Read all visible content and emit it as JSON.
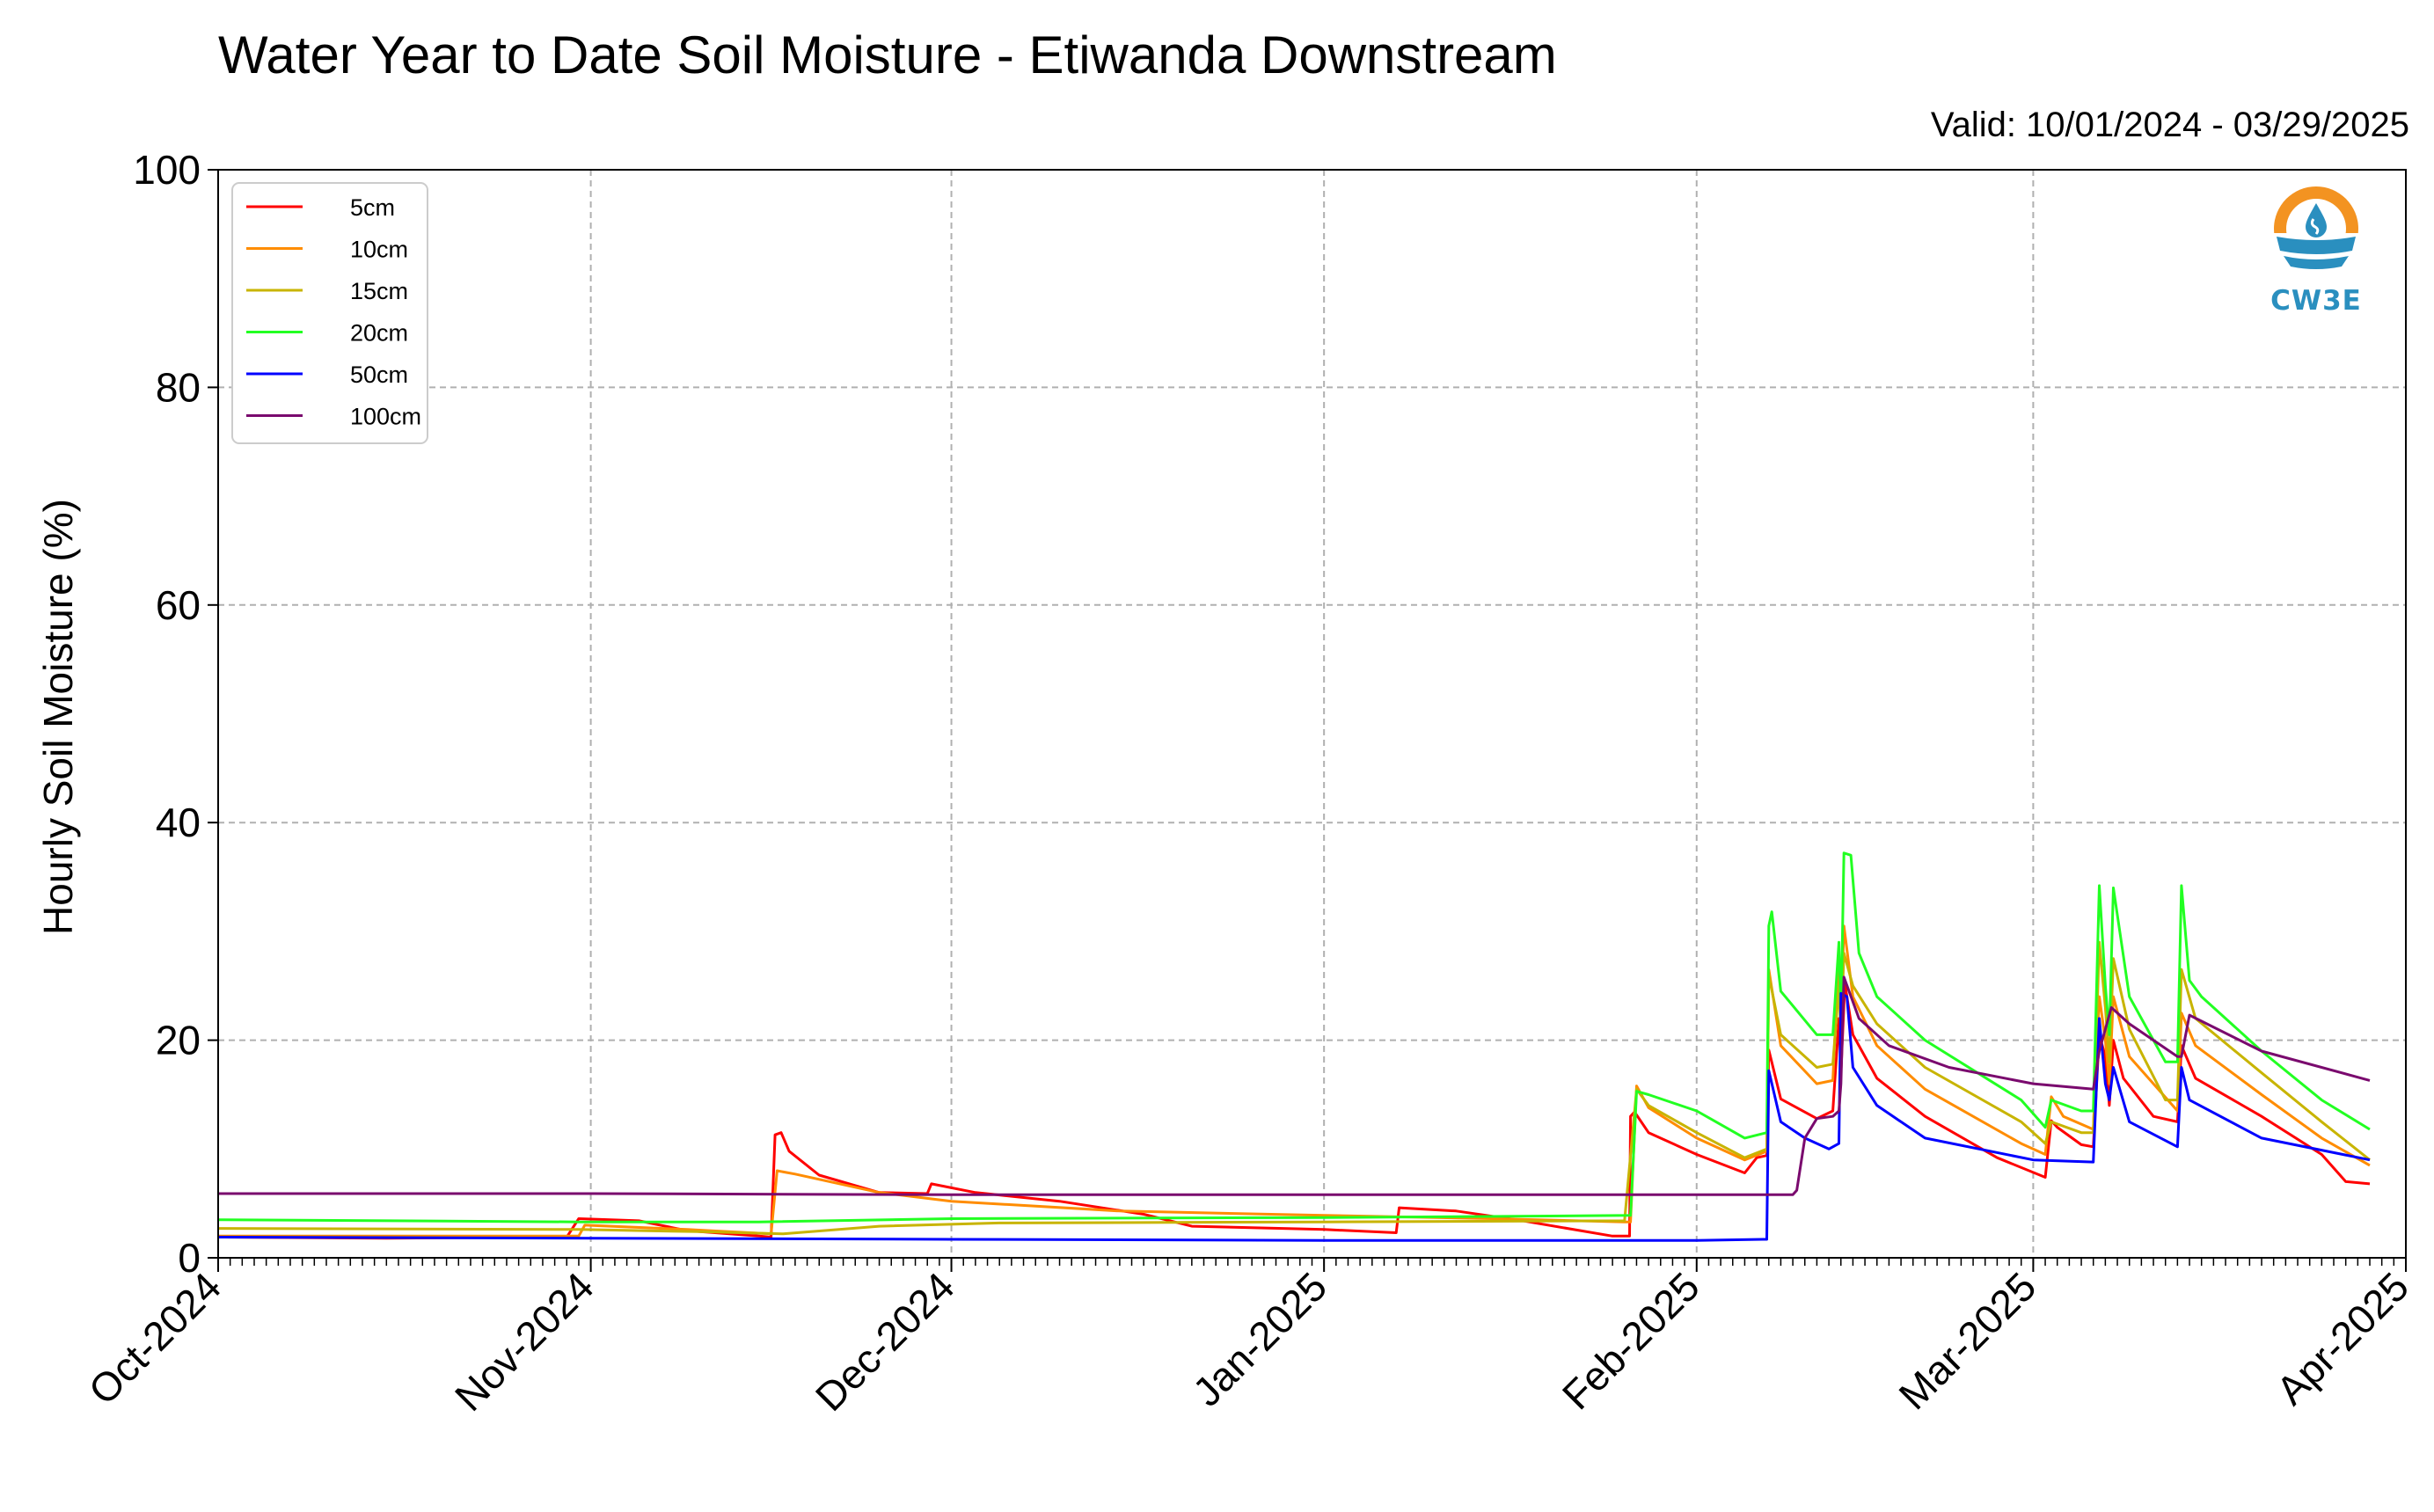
{
  "title": "Water Year to Date Soil Moisture - Etiwanda Downstream",
  "valid_range": "Valid: 10/01/2024 - 03/29/2025",
  "logo": {
    "text": "CW3E",
    "icon": "water-drop-logo-icon",
    "colors": [
      "#f39321",
      "#2a8fbf"
    ]
  },
  "chart_data": {
    "type": "line",
    "title": "Water Year to Date Soil Moisture - Etiwanda Downstream",
    "ylabel": "Hourly Soil Moisture (%)",
    "xlabel": "",
    "ylim": [
      0,
      100
    ],
    "xlim": [
      "2024-10-01",
      "2025-04-01"
    ],
    "yticks": [
      "0",
      "20",
      "40",
      "60",
      "80",
      "100"
    ],
    "xticks": [
      {
        "date": "2024-10-01",
        "label": "Oct-2024"
      },
      {
        "date": "2024-11-01",
        "label": "Nov-2024"
      },
      {
        "date": "2024-12-01",
        "label": "Dec-2024"
      },
      {
        "date": "2025-01-01",
        "label": "Jan-2025"
      },
      {
        "date": "2025-02-01",
        "label": "Feb-2025"
      },
      {
        "date": "2025-03-01",
        "label": "Mar-2025"
      },
      {
        "date": "2025-04-01",
        "label": "Apr-2025"
      }
    ],
    "grid": true,
    "legend_position": "top-left",
    "series": [
      {
        "name": "5cm",
        "color": "#ff0000",
        "points": [
          [
            "2024-10-01T00",
            1.9
          ],
          [
            "2024-10-15T00",
            1.8
          ],
          [
            "2024-10-30T00",
            1.9
          ],
          [
            "2024-10-31T00",
            3.6
          ],
          [
            "2024-11-05T00",
            3.4
          ],
          [
            "2024-11-09T00",
            2.5
          ],
          [
            "2024-11-15T00",
            2.0
          ],
          [
            "2024-11-16T00",
            1.9
          ],
          [
            "2024-11-16T08",
            11.3
          ],
          [
            "2024-11-16T20",
            11.5
          ],
          [
            "2024-11-17T12",
            9.8
          ],
          [
            "2024-11-20T00",
            7.6
          ],
          [
            "2024-11-25T00",
            6.0
          ],
          [
            "2024-11-29T00",
            5.9
          ],
          [
            "2024-11-29T08",
            6.8
          ],
          [
            "2024-12-03T00",
            6.0
          ],
          [
            "2024-12-10T00",
            5.2
          ],
          [
            "2024-12-17T00",
            4.0
          ],
          [
            "2024-12-21T00",
            2.9
          ],
          [
            "2025-01-01T00",
            2.6
          ],
          [
            "2025-01-07T00",
            2.3
          ],
          [
            "2025-01-07T06",
            4.6
          ],
          [
            "2025-01-12T00",
            4.3
          ],
          [
            "2025-01-17T00",
            3.5
          ],
          [
            "2025-01-25T00",
            2.0
          ],
          [
            "2025-01-26T10",
            2.0
          ],
          [
            "2025-01-26T12",
            13.0
          ],
          [
            "2025-01-26T20",
            13.4
          ],
          [
            "2025-01-28T00",
            11.5
          ],
          [
            "2025-02-01T00",
            9.5
          ],
          [
            "2025-02-05T00",
            7.8
          ],
          [
            "2025-02-06T00",
            9.2
          ],
          [
            "2025-02-06T20",
            9.4
          ],
          [
            "2025-02-07T00",
            19.1
          ],
          [
            "2025-02-08T00",
            14.6
          ],
          [
            "2025-02-11T00",
            12.8
          ],
          [
            "2025-02-12T08",
            13.5
          ],
          [
            "2025-02-12T20",
            22.0
          ],
          [
            "2025-02-13T00",
            17.0
          ],
          [
            "2025-02-13T08",
            25.2
          ],
          [
            "2025-02-14T00",
            20.5
          ],
          [
            "2025-02-16T00",
            16.5
          ],
          [
            "2025-02-20T00",
            13.0
          ],
          [
            "2025-02-26T00",
            9.2
          ],
          [
            "2025-03-02T00",
            7.4
          ],
          [
            "2025-03-02T12",
            12.6
          ],
          [
            "2025-03-03T00",
            12.0
          ],
          [
            "2025-03-05T00",
            10.4
          ],
          [
            "2025-03-06T00",
            10.2
          ],
          [
            "2025-03-06T12",
            20.5
          ],
          [
            "2025-03-07T00",
            18.5
          ],
          [
            "2025-03-07T08",
            14.0
          ],
          [
            "2025-03-07T16",
            20.0
          ],
          [
            "2025-03-08T12",
            16.5
          ],
          [
            "2025-03-11T00",
            13.0
          ],
          [
            "2025-03-13T00",
            12.5
          ],
          [
            "2025-03-13T08",
            19.5
          ],
          [
            "2025-03-14T12",
            16.5
          ],
          [
            "2025-03-20T00",
            13.0
          ],
          [
            "2025-03-25T00",
            9.5
          ],
          [
            "2025-03-27T00",
            7.0
          ],
          [
            "2025-03-29T00",
            6.8
          ]
        ]
      },
      {
        "name": "10cm",
        "color": "#ff8c00",
        "points": [
          [
            "2024-10-01T00",
            2.0
          ],
          [
            "2024-10-31T00",
            2.0
          ],
          [
            "2024-10-31T12",
            3.0
          ],
          [
            "2024-11-09T00",
            2.6
          ],
          [
            "2024-11-16T00",
            2.2
          ],
          [
            "2024-11-16T12",
            8.0
          ],
          [
            "2024-11-18T00",
            7.7
          ],
          [
            "2024-11-25T00",
            6.0
          ],
          [
            "2024-12-01T00",
            5.2
          ],
          [
            "2024-12-15T00",
            4.3
          ],
          [
            "2025-01-01T00",
            3.9
          ],
          [
            "2025-01-15T00",
            3.6
          ],
          [
            "2025-01-26T00",
            3.3
          ],
          [
            "2025-01-26T12",
            3.3
          ],
          [
            "2025-01-27T00",
            15.8
          ],
          [
            "2025-01-28T00",
            13.8
          ],
          [
            "2025-02-01T00",
            11.0
          ],
          [
            "2025-02-05T00",
            9.0
          ],
          [
            "2025-02-06T20",
            9.8
          ],
          [
            "2025-02-07T00",
            26.5
          ],
          [
            "2025-02-08T00",
            19.5
          ],
          [
            "2025-02-11T00",
            16.0
          ],
          [
            "2025-02-12T08",
            16.3
          ],
          [
            "2025-02-12T20",
            28.0
          ],
          [
            "2025-02-13T00",
            21.0
          ],
          [
            "2025-02-13T06",
            30.5
          ],
          [
            "2025-02-14T00",
            24.0
          ],
          [
            "2025-02-16T00",
            19.5
          ],
          [
            "2025-02-20T00",
            15.5
          ],
          [
            "2025-02-28T00",
            10.5
          ],
          [
            "2025-03-02T00",
            9.5
          ],
          [
            "2025-03-02T12",
            14.8
          ],
          [
            "2025-03-03T12",
            13.0
          ],
          [
            "2025-03-06T00",
            11.8
          ],
          [
            "2025-03-06T12",
            24.0
          ],
          [
            "2025-03-07T00",
            20.0
          ],
          [
            "2025-03-07T08",
            16.0
          ],
          [
            "2025-03-07T16",
            24.0
          ],
          [
            "2025-03-09T00",
            18.5
          ],
          [
            "2025-03-13T00",
            13.5
          ],
          [
            "2025-03-13T08",
            22.5
          ],
          [
            "2025-03-14T12",
            19.5
          ],
          [
            "2025-03-20T00",
            15.0
          ],
          [
            "2025-03-25T00",
            11.0
          ],
          [
            "2025-03-29T00",
            8.5
          ]
        ]
      },
      {
        "name": "15cm",
        "color": "#c8b400",
        "points": [
          [
            "2024-10-01T00",
            2.7
          ],
          [
            "2024-10-31T00",
            2.6
          ],
          [
            "2024-11-10T00",
            2.4
          ],
          [
            "2024-11-17T00",
            2.2
          ],
          [
            "2024-11-25T00",
            2.9
          ],
          [
            "2024-12-05T00",
            3.2
          ],
          [
            "2025-01-01T00",
            3.3
          ],
          [
            "2025-01-26T00",
            3.4
          ],
          [
            "2025-01-27T00",
            15.5
          ],
          [
            "2025-01-28T00",
            14.0
          ],
          [
            "2025-02-01T00",
            11.5
          ],
          [
            "2025-02-05T00",
            9.2
          ],
          [
            "2025-02-06T20",
            10.0
          ],
          [
            "2025-02-07T00",
            26.0
          ],
          [
            "2025-02-08T00",
            20.5
          ],
          [
            "2025-02-11T00",
            17.5
          ],
          [
            "2025-02-12T08",
            17.8
          ],
          [
            "2025-02-12T20",
            25.0
          ],
          [
            "2025-02-13T00",
            20.5
          ],
          [
            "2025-02-13T06",
            28.0
          ],
          [
            "2025-02-14T00",
            25.0
          ],
          [
            "2025-02-16T00",
            21.5
          ],
          [
            "2025-02-20T00",
            17.5
          ],
          [
            "2025-02-28T00",
            12.5
          ],
          [
            "2025-03-02T00",
            10.5
          ],
          [
            "2025-03-02T12",
            12.5
          ],
          [
            "2025-03-05T00",
            11.5
          ],
          [
            "2025-03-06T00",
            11.5
          ],
          [
            "2025-03-06T12",
            29.0
          ],
          [
            "2025-03-07T00",
            23.0
          ],
          [
            "2025-03-07T08",
            18.0
          ],
          [
            "2025-03-07T16",
            27.5
          ],
          [
            "2025-03-09T00",
            21.0
          ],
          [
            "2025-03-12T00",
            14.5
          ],
          [
            "2025-03-13T00",
            14.5
          ],
          [
            "2025-03-13T08",
            26.5
          ],
          [
            "2025-03-14T12",
            22.0
          ],
          [
            "2025-03-20T00",
            17.0
          ],
          [
            "2025-03-25T00",
            12.5
          ],
          [
            "2025-03-29T00",
            9.0
          ]
        ]
      },
      {
        "name": "20cm",
        "color": "#22ff22",
        "points": [
          [
            "2024-10-01T00",
            3.5
          ],
          [
            "2024-10-31T00",
            3.3
          ],
          [
            "2024-11-15T00",
            3.3
          ],
          [
            "2024-12-01T00",
            3.6
          ],
          [
            "2025-01-01T00",
            3.7
          ],
          [
            "2025-01-26T12",
            3.9
          ],
          [
            "2025-01-27T00",
            15.3
          ],
          [
            "2025-01-28T00",
            15.0
          ],
          [
            "2025-02-01T00",
            13.5
          ],
          [
            "2025-02-05T00",
            11.0
          ],
          [
            "2025-02-06T20",
            11.5
          ],
          [
            "2025-02-07T00",
            30.5
          ],
          [
            "2025-02-07T06",
            31.8
          ],
          [
            "2025-02-08T00",
            24.5
          ],
          [
            "2025-02-11T00",
            20.5
          ],
          [
            "2025-02-12T08",
            20.5
          ],
          [
            "2025-02-12T20",
            29.0
          ],
          [
            "2025-02-13T00",
            22.0
          ],
          [
            "2025-02-13T06",
            37.2
          ],
          [
            "2025-02-13T20",
            37.0
          ],
          [
            "2025-02-14T12",
            28.0
          ],
          [
            "2025-02-16T00",
            24.0
          ],
          [
            "2025-02-20T00",
            20.0
          ],
          [
            "2025-02-28T00",
            14.5
          ],
          [
            "2025-03-02T00",
            12.0
          ],
          [
            "2025-03-02T12",
            14.5
          ],
          [
            "2025-03-05T00",
            13.5
          ],
          [
            "2025-03-06T00",
            13.5
          ],
          [
            "2025-03-06T12",
            34.2
          ],
          [
            "2025-03-07T00",
            25.0
          ],
          [
            "2025-03-07T08",
            20.5
          ],
          [
            "2025-03-07T16",
            34.0
          ],
          [
            "2025-03-09T00",
            24.0
          ],
          [
            "2025-03-12T00",
            18.0
          ],
          [
            "2025-03-13T00",
            18.0
          ],
          [
            "2025-03-13T08",
            34.2
          ],
          [
            "2025-03-14T00",
            25.5
          ],
          [
            "2025-03-15T00",
            24.0
          ],
          [
            "2025-03-20T00",
            19.0
          ],
          [
            "2025-03-25T00",
            14.5
          ],
          [
            "2025-03-29T00",
            11.8
          ]
        ]
      },
      {
        "name": "50cm",
        "color": "#0000ff",
        "points": [
          [
            "2024-10-01T00",
            1.9
          ],
          [
            "2024-11-01T00",
            1.8
          ],
          [
            "2024-12-01T00",
            1.7
          ],
          [
            "2025-01-01T00",
            1.6
          ],
          [
            "2025-02-01T00",
            1.6
          ],
          [
            "2025-02-06T12",
            1.7
          ],
          [
            "2025-02-06T20",
            1.7
          ],
          [
            "2025-02-07T00",
            17.2
          ],
          [
            "2025-02-08T00",
            12.5
          ],
          [
            "2025-02-10T00",
            11.0
          ],
          [
            "2025-02-12T00",
            10.0
          ],
          [
            "2025-02-12T20",
            10.5
          ],
          [
            "2025-02-13T00",
            24.3
          ],
          [
            "2025-02-13T12",
            24.0
          ],
          [
            "2025-02-14T00",
            17.5
          ],
          [
            "2025-02-16T00",
            14.0
          ],
          [
            "2025-02-20T00",
            11.0
          ],
          [
            "2025-03-01T00",
            9.0
          ],
          [
            "2025-03-06T00",
            8.8
          ],
          [
            "2025-03-06T12",
            22.0
          ],
          [
            "2025-03-07T00",
            16.0
          ],
          [
            "2025-03-07T08",
            14.5
          ],
          [
            "2025-03-07T16",
            17.5
          ],
          [
            "2025-03-09T00",
            12.5
          ],
          [
            "2025-03-13T00",
            10.2
          ],
          [
            "2025-03-13T08",
            17.5
          ],
          [
            "2025-03-14T00",
            14.5
          ],
          [
            "2025-03-20T00",
            11.0
          ],
          [
            "2025-03-29T00",
            9.0
          ]
        ]
      },
      {
        "name": "100cm",
        "color": "#7a0a6e",
        "points": [
          [
            "2024-10-01T00",
            5.9
          ],
          [
            "2024-11-01T00",
            5.9
          ],
          [
            "2024-12-01T00",
            5.8
          ],
          [
            "2025-01-01T00",
            5.8
          ],
          [
            "2025-02-01T00",
            5.8
          ],
          [
            "2025-02-09T00",
            5.8
          ],
          [
            "2025-02-09T08",
            6.2
          ],
          [
            "2025-02-10T00",
            11.0
          ],
          [
            "2025-02-11T00",
            12.8
          ],
          [
            "2025-02-12T08",
            13.0
          ],
          [
            "2025-02-12T20",
            13.5
          ],
          [
            "2025-02-13T00",
            16.0
          ],
          [
            "2025-02-13T06",
            25.8
          ],
          [
            "2025-02-14T12",
            22.0
          ],
          [
            "2025-02-17T00",
            19.5
          ],
          [
            "2025-02-22T00",
            17.5
          ],
          [
            "2025-03-01T00",
            16.0
          ],
          [
            "2025-03-06T00",
            15.5
          ],
          [
            "2025-03-06T12",
            19.0
          ],
          [
            "2025-03-07T12",
            23.0
          ],
          [
            "2025-03-09T00",
            21.5
          ],
          [
            "2025-03-13T00",
            18.5
          ],
          [
            "2025-03-13T08",
            18.5
          ],
          [
            "2025-03-14T00",
            22.3
          ],
          [
            "2025-03-20T00",
            19.0
          ],
          [
            "2025-03-29T00",
            16.3
          ]
        ]
      }
    ]
  }
}
